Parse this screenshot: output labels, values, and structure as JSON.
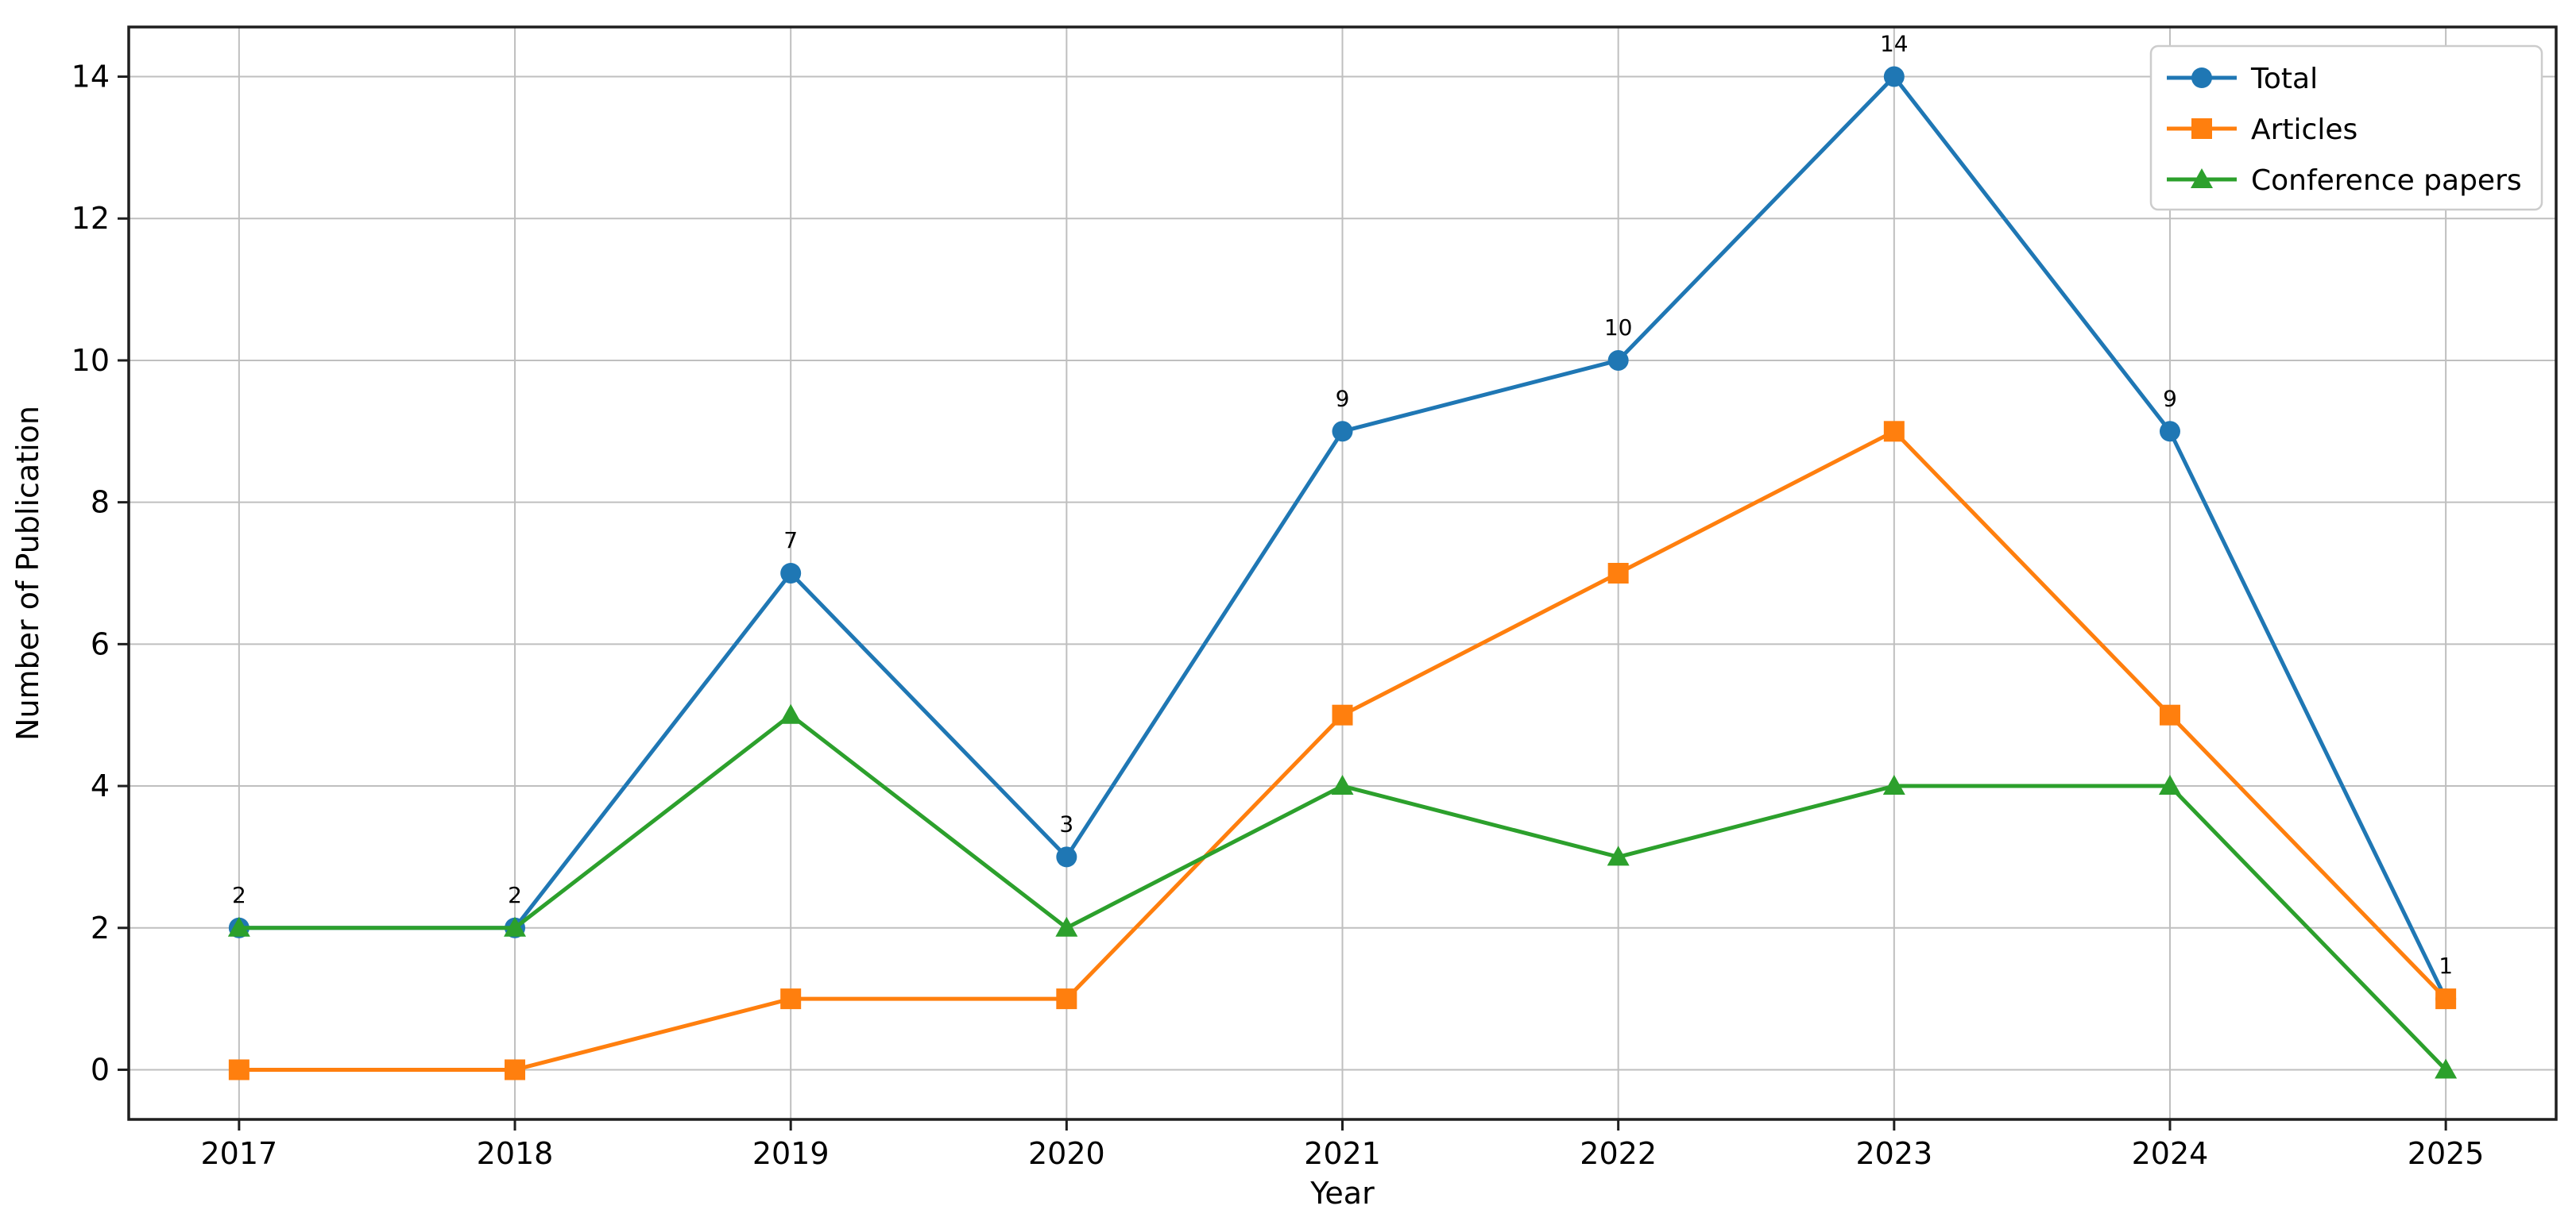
{
  "chart_data": {
    "type": "line",
    "title": "",
    "xlabel": "Year",
    "ylabel": "Number of Publication",
    "x": [
      2017,
      2018,
      2019,
      2020,
      2021,
      2022,
      2023,
      2024,
      2025
    ],
    "xticklabels": [
      "2017",
      "2018",
      "2019",
      "2020",
      "2021",
      "2022",
      "2023",
      "2024",
      "2025"
    ],
    "yticks": [
      0,
      2,
      4,
      6,
      8,
      10,
      12,
      14
    ],
    "yticklabels": [
      "0",
      "2",
      "4",
      "6",
      "8",
      "10",
      "12",
      "14"
    ],
    "xlim": [
      2016.6,
      2025.4
    ],
    "ylim": [
      -0.7,
      14.7
    ],
    "grid": true,
    "series": [
      {
        "name": "Total",
        "marker": "circle",
        "color": "#1f77b4",
        "values": [
          2,
          2,
          7,
          3,
          9,
          10,
          14,
          9,
          1
        ]
      },
      {
        "name": "Articles",
        "marker": "square",
        "color": "#ff7f0e",
        "values": [
          0,
          0,
          1,
          1,
          5,
          7,
          9,
          5,
          1
        ]
      },
      {
        "name": "Conference papers",
        "marker": "triangle",
        "color": "#2ca02c",
        "values": [
          2,
          2,
          5,
          2,
          4,
          3,
          4,
          4,
          0
        ]
      }
    ],
    "annotations": {
      "series": "Total",
      "labels": [
        "2",
        "2",
        "7",
        "3",
        "9",
        "10",
        "14",
        "9",
        "1"
      ]
    },
    "legend": {
      "position": "top-right",
      "entries": [
        "Total",
        "Articles",
        "Conference papers"
      ]
    }
  },
  "colors": {
    "background": "#ffffff",
    "grid": "#bfbfbf",
    "spine": "#1f1f1f",
    "text": "#000000",
    "legend_border": "#cccccc",
    "legend_fill": "#ffffff"
  }
}
